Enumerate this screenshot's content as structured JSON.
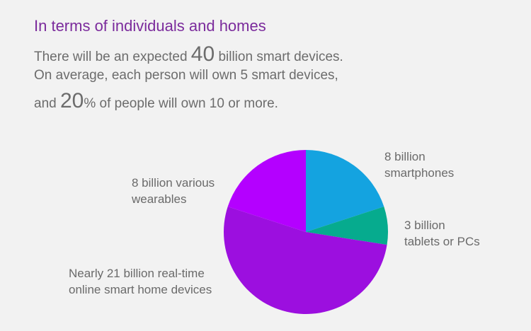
{
  "heading": "In terms of individuals and homes",
  "intro": {
    "line1_pre": "There will be an expected ",
    "line1_num": "40",
    "line1_post": " billion smart devices.",
    "line2": "On average, each person will own 5 smart devices,",
    "line3_pre": "and ",
    "line3_num": "20",
    "line3_post": "% of people will own 10 or more."
  },
  "chart_data": {
    "type": "pie",
    "title": "",
    "slices": [
      {
        "label": "8 billion\nsmartphones",
        "value": 8,
        "color": "#14a3e0"
      },
      {
        "label": "3 billion\ntablets or PCs",
        "value": 3,
        "color": "#06ab8e"
      },
      {
        "label": "Nearly 21 billion real-time\nonline smart home devices",
        "value": 21,
        "color": "#9c0fdf"
      },
      {
        "label": "8 billion various\nwearables",
        "value": 8,
        "color": "#b400ff"
      }
    ]
  }
}
